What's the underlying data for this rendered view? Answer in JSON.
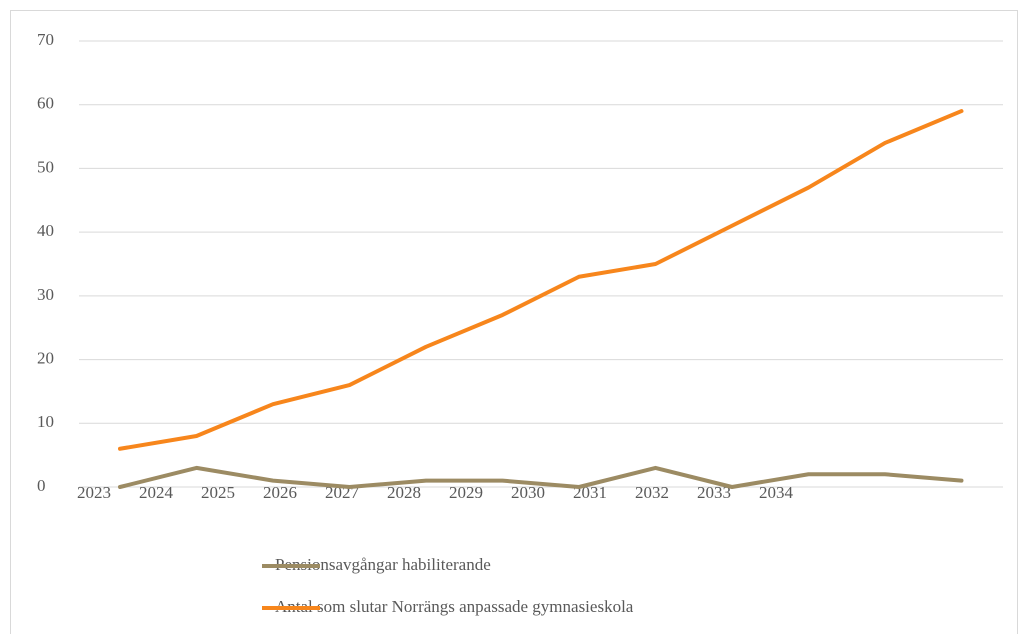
{
  "chart_data": {
    "type": "line",
    "categories": [
      "2023",
      "2024",
      "2025",
      "2026",
      "2027",
      "2028",
      "2029",
      "2030",
      "2031",
      "2032",
      "2033",
      "2034"
    ],
    "series": [
      {
        "name": "Pensionsavgångar habiliterande",
        "color": "#9c8b63",
        "values": [
          0,
          3,
          1,
          0,
          1,
          1,
          0,
          3,
          0,
          2,
          2,
          1
        ]
      },
      {
        "name": "Antal som slutar Norrängs anpassade gymnasieskola",
        "color": "#f7861c",
        "values": [
          6,
          8,
          13,
          16,
          22,
          27,
          33,
          35,
          41,
          47,
          54,
          59
        ]
      }
    ],
    "ylim": [
      0,
      70
    ],
    "yticks": [
      0,
      10,
      20,
      30,
      40,
      50,
      60,
      70
    ],
    "grid": true
  }
}
